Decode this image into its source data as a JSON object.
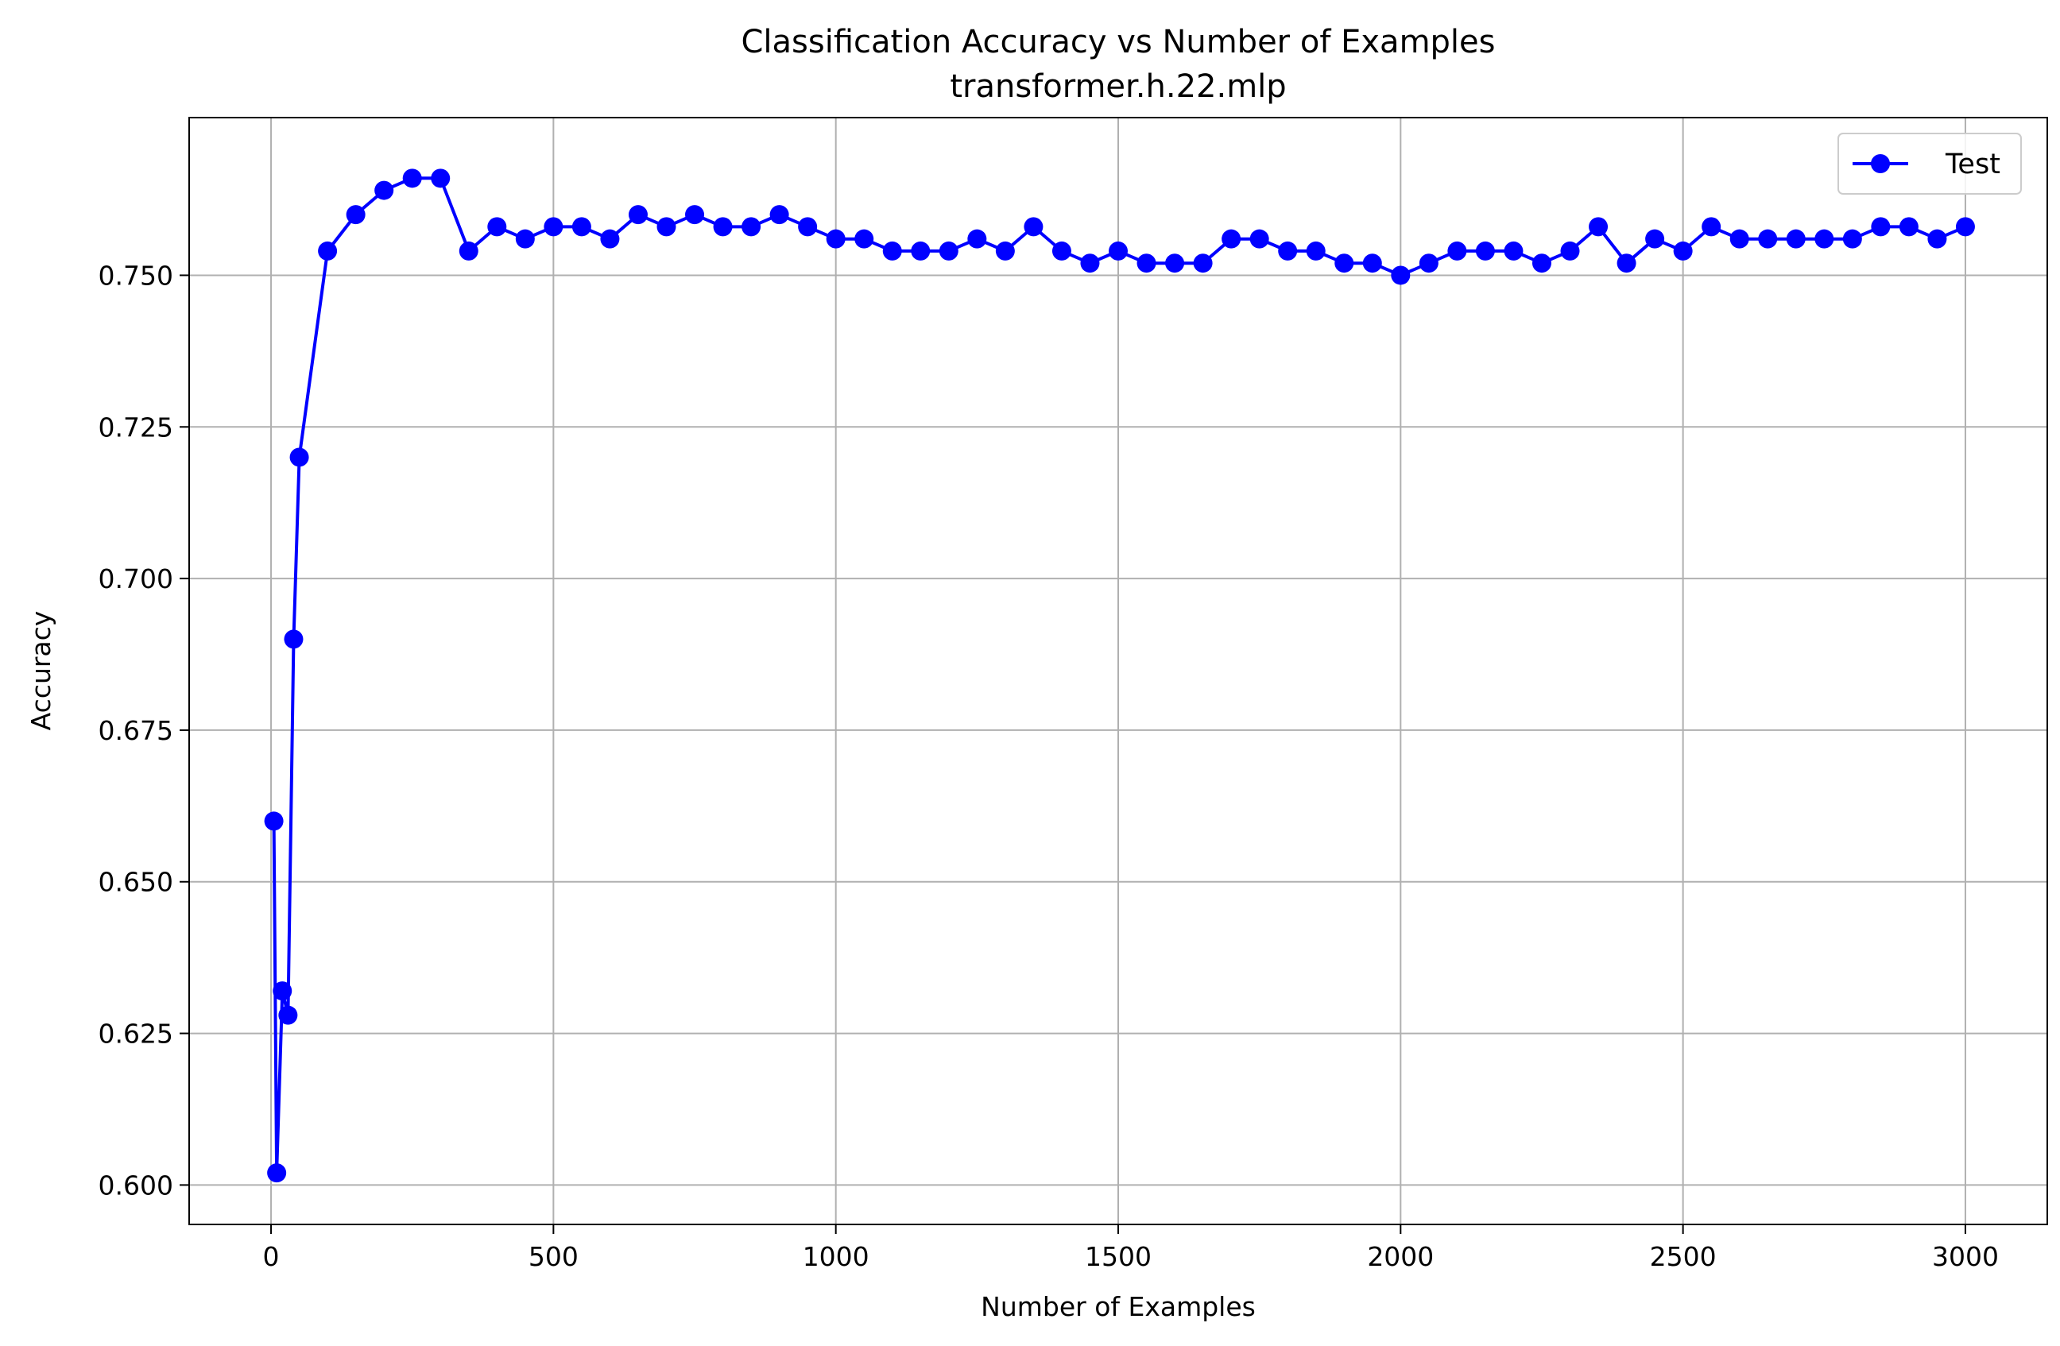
{
  "chart_data": {
    "type": "line",
    "title": "Classification Accuracy vs Number of Examples",
    "subtitle": "transformer.h.22.mlp",
    "xlabel": "Number of Examples",
    "ylabel": "Accuracy",
    "xlim": [
      -145,
      3145
    ],
    "ylim": [
      0.5935,
      0.776
    ],
    "xticks": [
      0,
      500,
      1000,
      1500,
      2000,
      2500,
      3000
    ],
    "xtick_labels": [
      "0",
      "500",
      "1000",
      "1500",
      "2000",
      "2500",
      "3000"
    ],
    "yticks": [
      0.6,
      0.625,
      0.65,
      0.675,
      0.7,
      0.725,
      0.75
    ],
    "ytick_labels": [
      "0.600",
      "0.625",
      "0.650",
      "0.675",
      "0.700",
      "0.725",
      "0.750"
    ],
    "grid": true,
    "legend_position": "top-right",
    "series": [
      {
        "name": "Test",
        "color": "#0000ff",
        "marker": "circle",
        "x": [
          5,
          10,
          20,
          30,
          40,
          50,
          100,
          150,
          200,
          250,
          300,
          350,
          400,
          450,
          500,
          550,
          600,
          650,
          700,
          750,
          800,
          850,
          900,
          950,
          1000,
          1050,
          1100,
          1150,
          1200,
          1250,
          1300,
          1350,
          1400,
          1450,
          1500,
          1550,
          1600,
          1650,
          1700,
          1750,
          1800,
          1850,
          1900,
          1950,
          2000,
          2050,
          2100,
          2150,
          2200,
          2250,
          2300,
          2350,
          2400,
          2450,
          2500,
          2550,
          2600,
          2650,
          2700,
          2750,
          2800,
          2850,
          2900,
          2950,
          3000
        ],
        "y": [
          0.66,
          0.602,
          0.632,
          0.628,
          0.69,
          0.72,
          0.754,
          0.76,
          0.764,
          0.766,
          0.766,
          0.754,
          0.758,
          0.756,
          0.758,
          0.758,
          0.756,
          0.76,
          0.758,
          0.76,
          0.758,
          0.758,
          0.76,
          0.758,
          0.756,
          0.756,
          0.754,
          0.754,
          0.754,
          0.756,
          0.754,
          0.758,
          0.754,
          0.752,
          0.754,
          0.752,
          0.752,
          0.752,
          0.756,
          0.756,
          0.754,
          0.754,
          0.752,
          0.752,
          0.75,
          0.752,
          0.754,
          0.754,
          0.754,
          0.752,
          0.754,
          0.758,
          0.752,
          0.756,
          0.754,
          0.758,
          0.756,
          0.756,
          0.756,
          0.756,
          0.756,
          0.758,
          0.758,
          0.756,
          0.758
        ]
      }
    ]
  }
}
